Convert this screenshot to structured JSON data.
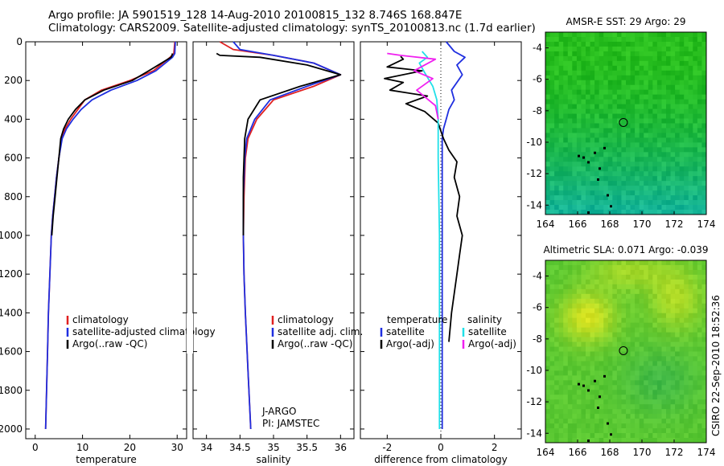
{
  "header": {
    "line1": "Argo profile: JA 5901519_128 14-Aug-2010 20100815_132 8.746S 168.847E",
    "line2": "Climatology: CARS2009. Satellite-adjusted climatology: synTS_20100813.nc (1.7d earlier)"
  },
  "colors": {
    "climatology": "#e02020",
    "satellite": "#1f2fe0",
    "argo": "#000000",
    "sal_satellite": "#20e0e8",
    "sal_argo": "#f020f0"
  },
  "chart_data": [
    {
      "type": "line",
      "id": "temperature",
      "xlabel": "temperature",
      "ylabel": "",
      "xlim": [
        -2,
        32
      ],
      "ylim": [
        0,
        2050
      ],
      "xticks": [
        "0",
        "10",
        "20",
        "30"
      ],
      "yticks": [
        "0",
        "200",
        "400",
        "600",
        "800",
        "1000",
        "1200",
        "1400",
        "1600",
        "1800",
        "2000"
      ],
      "legend": [
        "climatology",
        "satellite-adjusted climatology",
        "Argo(..raw -QC)"
      ],
      "series": [
        {
          "name": "climatology",
          "color": "red",
          "x": [
            29.5,
            29.3,
            28.5,
            25.0,
            20.0,
            14.0,
            10.5,
            9.0,
            7.5,
            6.3,
            5.6,
            5.0,
            4.5,
            4.1,
            3.7,
            3.4,
            3.1,
            2.8,
            2.6,
            2.4,
            2.3,
            2.2
          ],
          "y": [
            0,
            60,
            80,
            150,
            200,
            250,
            300,
            350,
            400,
            450,
            500,
            600,
            700,
            800,
            900,
            1000,
            1200,
            1400,
            1600,
            1800,
            1900,
            2000
          ]
        },
        {
          "name": "satellite-adjusted climatology",
          "color": "blue",
          "x": [
            29.6,
            29.5,
            29.0,
            25.5,
            21.5,
            16.0,
            12.0,
            9.7,
            8.0,
            6.6,
            5.7,
            5.0,
            4.5,
            4.1,
            3.7,
            3.4,
            3.1,
            2.8,
            2.6,
            2.4,
            2.3,
            2.2
          ],
          "y": [
            0,
            60,
            80,
            150,
            200,
            250,
            300,
            350,
            400,
            450,
            500,
            600,
            700,
            800,
            900,
            1000,
            1200,
            1400,
            1600,
            1800,
            1900,
            2000
          ]
        },
        {
          "name": "Argo(..raw -QC)",
          "color": "black",
          "x": [
            29.0,
            28.9,
            28.7,
            24.0,
            20.5,
            14.5,
            10.5,
            8.5,
            7.0,
            6.0,
            5.4,
            5.0,
            4.6,
            4.2,
            3.8,
            3.5
          ],
          "y": [
            60,
            70,
            80,
            150,
            200,
            250,
            300,
            350,
            400,
            450,
            500,
            600,
            700,
            800,
            900,
            1000
          ]
        }
      ]
    },
    {
      "type": "line",
      "id": "salinity",
      "xlabel": "salinity",
      "ylabel": "",
      "xlim": [
        33.8,
        36.2
      ],
      "ylim": [
        0,
        2050
      ],
      "xticks": [
        "34",
        "34.5",
        "35",
        "35.5",
        "36"
      ],
      "yticks": [],
      "legend": [
        "climatology",
        "satellite adj. clim.",
        "Argo(..raw -QC)"
      ],
      "annotation": [
        "J-ARGO",
        "PI: JAMSTEC"
      ],
      "series": [
        {
          "name": "climatology",
          "color": "red",
          "x": [
            34.2,
            34.4,
            35.0,
            35.6,
            36.0,
            35.6,
            35.0,
            34.75,
            34.62,
            34.58,
            34.56,
            34.55,
            34.56,
            34.58,
            34.62,
            34.66
          ],
          "y": [
            0,
            40,
            70,
            110,
            170,
            230,
            300,
            400,
            500,
            600,
            800,
            1000,
            1200,
            1400,
            1700,
            2000
          ]
        },
        {
          "name": "satellite adj. clim.",
          "color": "blue",
          "x": [
            34.4,
            34.5,
            35.0,
            35.6,
            36.0,
            35.5,
            34.95,
            34.72,
            34.6,
            34.57,
            34.55,
            34.55,
            34.56,
            34.58,
            34.62,
            34.66
          ],
          "y": [
            0,
            40,
            70,
            110,
            170,
            230,
            300,
            400,
            500,
            600,
            800,
            1000,
            1200,
            1400,
            1700,
            2000
          ]
        },
        {
          "name": "Argo(..raw -QC)",
          "color": "black",
          "x": [
            34.15,
            34.2,
            34.8,
            35.5,
            36.0,
            35.4,
            34.8,
            34.62,
            34.57,
            34.55,
            34.55
          ],
          "y": [
            60,
            70,
            80,
            120,
            170,
            230,
            300,
            400,
            500,
            700,
            1000
          ]
        }
      ]
    },
    {
      "type": "line",
      "id": "difference",
      "xlabel": "difference from climatology",
      "ylabel": "",
      "xlim": [
        -3,
        3
      ],
      "ylim": [
        0,
        2050
      ],
      "xticks": [
        "-2",
        "0",
        "2"
      ],
      "yticks": [],
      "legend": [
        "temperature",
        "satellite",
        "Argo(-adj)",
        "salinity",
        "satellite",
        "Argo(-adj)"
      ],
      "series": [
        {
          "name": "temperature satellite",
          "color": "blue",
          "x": [
            0.2,
            0.5,
            0.9,
            0.6,
            0.8,
            0.4,
            0.5,
            0.3,
            0.2,
            0.1,
            0.05,
            0.05,
            0.05,
            0.05,
            0.05
          ],
          "y": [
            0,
            50,
            80,
            120,
            170,
            250,
            300,
            350,
            400,
            450,
            500,
            800,
            1200,
            1600,
            2000
          ]
        },
        {
          "name": "temperature Argo(-adj)",
          "color": "black",
          "x": [
            -1.5,
            -1.4,
            -2.0,
            -0.7,
            -2.1,
            -1.4,
            -1.9,
            -0.5,
            -1.3,
            -0.6,
            -0.1,
            0.1,
            0.3,
            0.6,
            0.5,
            0.7,
            0.6,
            0.8,
            0.7,
            0.6,
            0.4,
            0.3
          ],
          "y": [
            75,
            90,
            130,
            150,
            190,
            210,
            250,
            280,
            320,
            360,
            420,
            500,
            560,
            620,
            700,
            800,
            900,
            1000,
            1100,
            1200,
            1400,
            1550
          ]
        },
        {
          "name": "salinity satellite",
          "color": "cyan",
          "x": [
            -0.7,
            -0.5,
            -0.8,
            -0.6,
            -0.3,
            -0.15,
            -0.1,
            -0.1,
            -0.05,
            -0.05,
            -0.05
          ],
          "y": [
            50,
            80,
            110,
            160,
            230,
            300,
            400,
            600,
            1000,
            1500,
            2000
          ]
        },
        {
          "name": "salinity Argo(-adj)",
          "color": "magenta",
          "x": [
            -2.0,
            -1.5,
            -0.2,
            -1.0,
            -0.3,
            -0.9,
            -0.2,
            -0.1
          ],
          "y": [
            60,
            70,
            90,
            150,
            190,
            250,
            330,
            400
          ]
        }
      ]
    },
    {
      "type": "heatmap",
      "id": "sst-map",
      "title": "AMSR-E SST: 29 Argo: 29",
      "xticks": [
        "164",
        "166",
        "168",
        "170",
        "172",
        "174"
      ],
      "yticks": [
        "-4",
        "-6",
        "-8",
        "-10",
        "-12",
        "-14"
      ],
      "marker": {
        "lon": 168.847,
        "lat": -8.746
      }
    },
    {
      "type": "heatmap",
      "id": "sla-map",
      "title": "Altimetric SLA: 0.071 Argo: -0.039",
      "xticks": [
        "164",
        "166",
        "168",
        "170",
        "172",
        "174"
      ],
      "yticks": [
        "-4",
        "-6",
        "-8",
        "-10",
        "-12",
        "-14"
      ],
      "marker": {
        "lon": 168.847,
        "lat": -8.746
      }
    }
  ],
  "stamp": "CSIRO 22-Sep-2010 18:52:36"
}
